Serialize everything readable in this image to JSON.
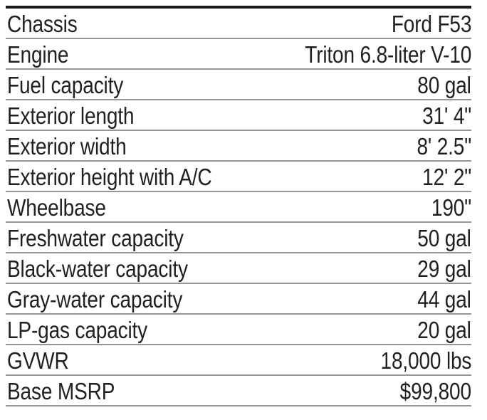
{
  "table": {
    "title": "vehicle-specifications",
    "colors": {
      "background": "#ffffff",
      "text": "#231f20",
      "top_rule": "#1a1a1a",
      "row_separator": "#969696"
    },
    "rows": [
      {
        "label": "Chassis",
        "value": "Ford F53"
      },
      {
        "label": "Engine",
        "value": "Triton 6.8-liter V-10"
      },
      {
        "label": "Fuel capacity",
        "value": "80 gal"
      },
      {
        "label": "Exterior length",
        "value": "31' 4\""
      },
      {
        "label": "Exterior width",
        "value": "8' 2.5\""
      },
      {
        "label": "Exterior height with A/C",
        "value": "12' 2\""
      },
      {
        "label": "Wheelbase",
        "value": "190\""
      },
      {
        "label": "Freshwater capacity",
        "value": "50 gal"
      },
      {
        "label": "Black-water capacity",
        "value": "29 gal"
      },
      {
        "label": "Gray-water capacity",
        "value": "44 gal"
      },
      {
        "label": "LP-gas capacity",
        "value": "20 gal"
      },
      {
        "label": "GVWR",
        "value": "18,000 lbs"
      },
      {
        "label": "Base MSRP",
        "value": "$99,800"
      }
    ]
  }
}
